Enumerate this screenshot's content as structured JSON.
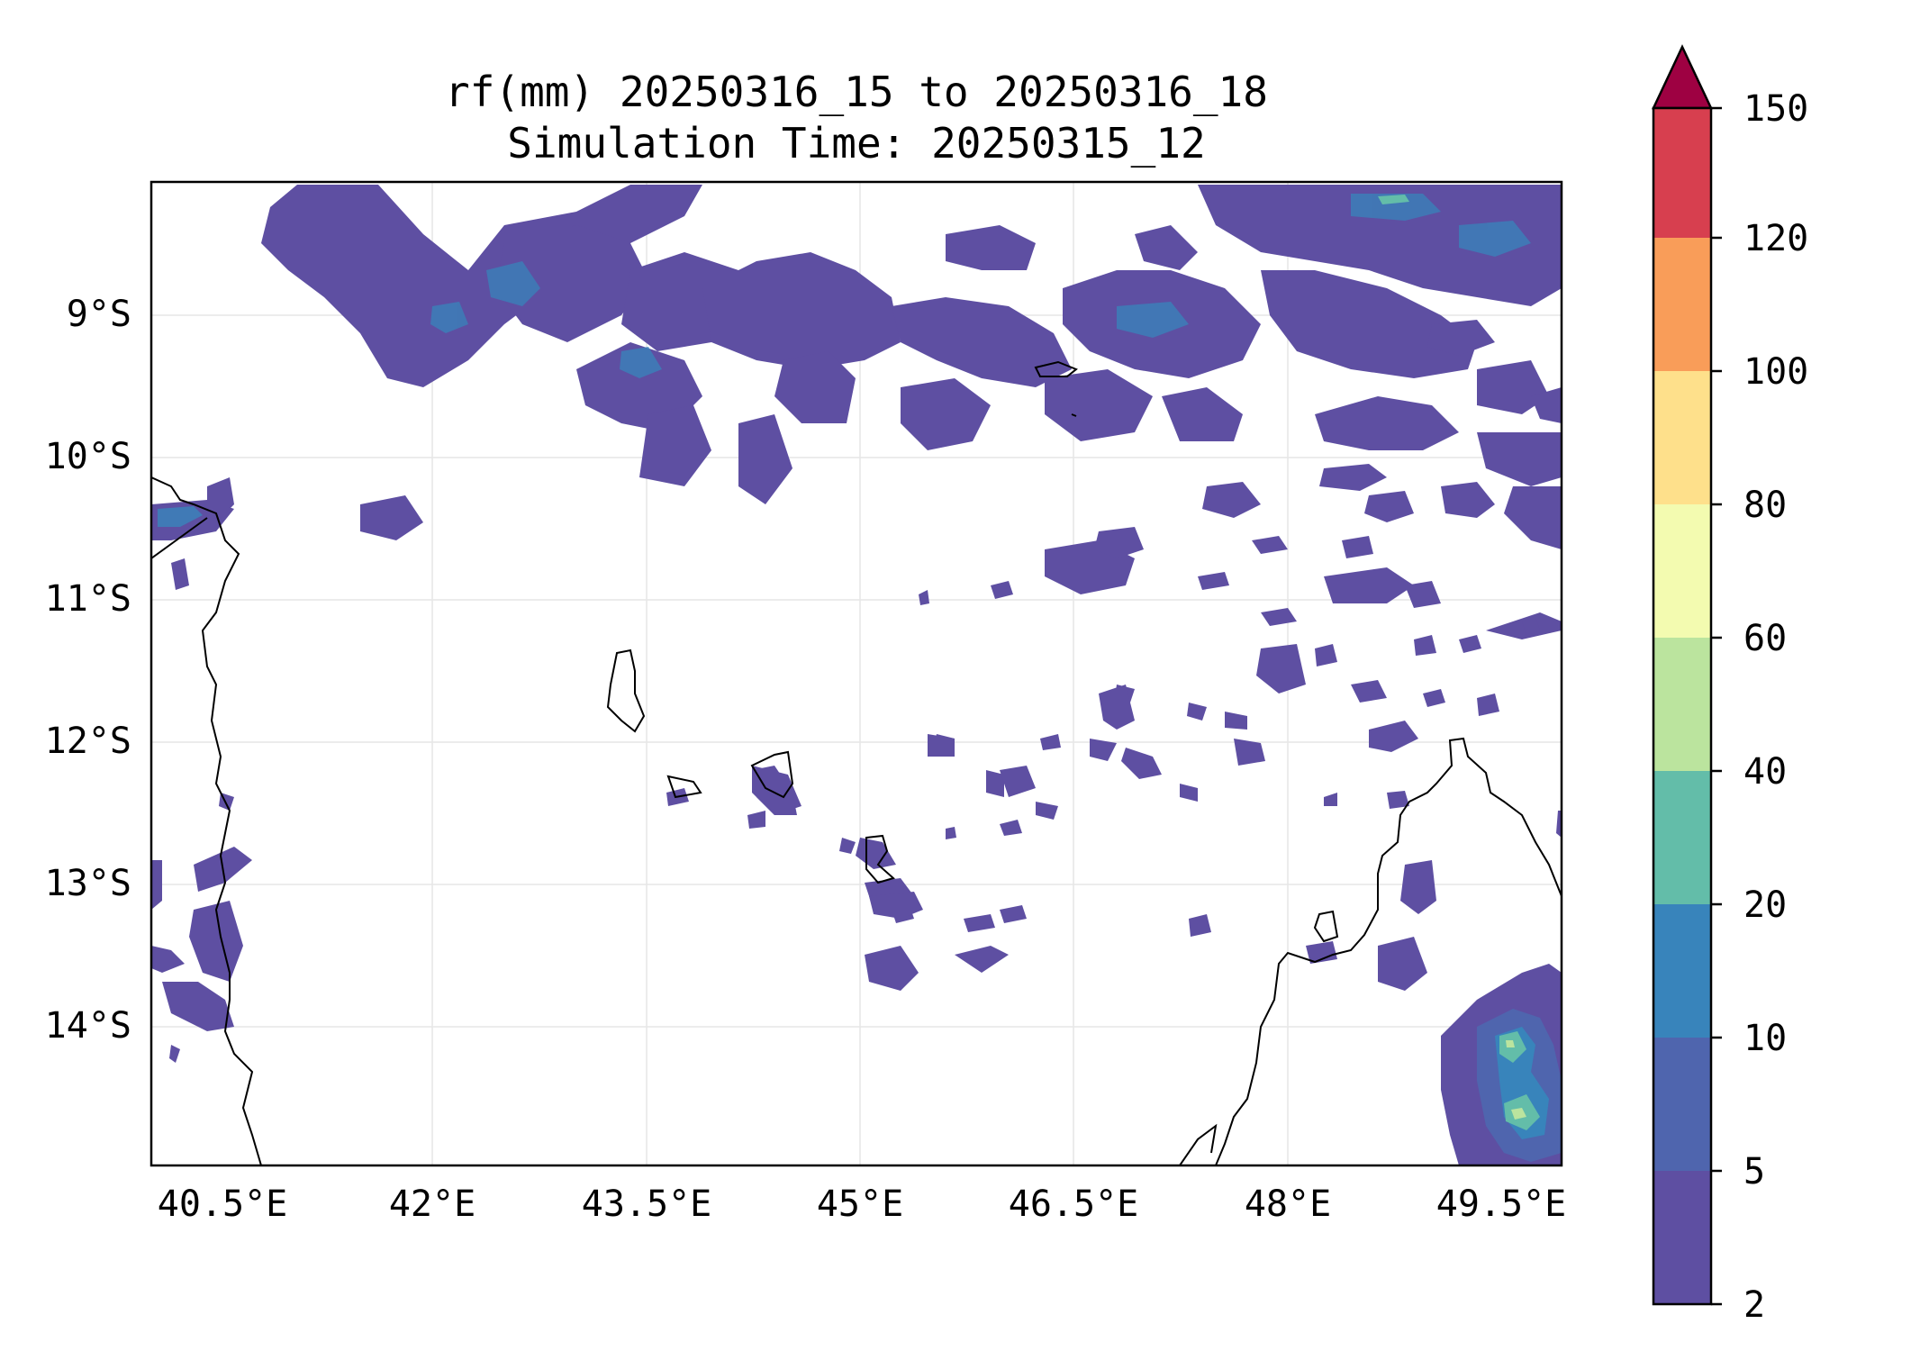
{
  "title": {
    "line1": "rf(mm) 20250316_15 to 20250316_18",
    "line2": "Simulation Time: 20250315_12"
  },
  "map": {
    "lon_range": [
      40.0,
      50.0
    ],
    "lat_range": [
      -15.0,
      -8.06
    ],
    "lon_ticks": [
      {
        "value": 40.5,
        "label": "40.5°E"
      },
      {
        "value": 42.0,
        "label": "42°E"
      },
      {
        "value": 43.5,
        "label": "43.5°E"
      },
      {
        "value": 45.0,
        "label": "45°E"
      },
      {
        "value": 46.5,
        "label": "46.5°E"
      },
      {
        "value": 48.0,
        "label": "48°E"
      },
      {
        "value": 49.5,
        "label": "49.5°E"
      }
    ],
    "lat_ticks": [
      {
        "value": -9,
        "label": "9°S"
      },
      {
        "value": -10,
        "label": "10°S"
      },
      {
        "value": -11,
        "label": "11°S"
      },
      {
        "value": -12,
        "label": "12°S"
      },
      {
        "value": -13,
        "label": "13°S"
      },
      {
        "value": -14,
        "label": "14°S"
      }
    ],
    "gridlines": true,
    "regions_shown": [
      "East African coast (Tanzania / Mozambique)",
      "Comoros islands",
      "Northern Madagascar",
      "Aldabra atoll"
    ]
  },
  "colorbar": {
    "orientation": "vertical",
    "extend": "max",
    "extend_color": "#9e0142",
    "bins": [
      {
        "label": "2",
        "color": "#5e4fa2"
      },
      {
        "label": "5",
        "color": "#4f65ae"
      },
      {
        "label": "10",
        "color": "#3884bb"
      },
      {
        "label": "20",
        "color": "#63bda9"
      },
      {
        "label": "40",
        "color": "#bbe49e"
      },
      {
        "label": "60",
        "color": "#f3fbb0"
      },
      {
        "label": "80",
        "color": "#fee08b"
      },
      {
        "label": "100",
        "color": "#f99d59"
      },
      {
        "label": "120",
        "color": "#d73f4f"
      },
      {
        "label": "150",
        "color": ""
      }
    ]
  },
  "chart_data": {
    "type": "heatmap",
    "title": "rf(mm) 20250316_15 to 20250316_18 / Simulation Time: 20250315_12",
    "xlabel": "",
    "ylabel": "",
    "x_range_deg_E": [
      40.0,
      50.0
    ],
    "y_range_deg_S": [
      8.06,
      15.0
    ],
    "levels": [
      2,
      5,
      10,
      20,
      40,
      60,
      80,
      100,
      120,
      150
    ],
    "features": [
      {
        "region": "northern band 8–10.5°S, 41–50°E",
        "lon": [
          41.0,
          50.0
        ],
        "lat": [
          -10.7,
          -8.06
        ],
        "range": "2-10"
      },
      {
        "region": "NE corner",
        "lon": [
          48.5,
          50.0
        ],
        "lat": [
          -9.0,
          -8.06
        ],
        "range": "5-20"
      },
      {
        "region": "SE cell over N Madagascar",
        "lon": [
          49.2,
          50.0
        ],
        "lat": [
          -15.0,
          -13.7
        ],
        "max": "40-60"
      },
      {
        "region": "Tanzanian coast",
        "lon": [
          40.0,
          40.7
        ],
        "lat": [
          -14.1,
          -10.3
        ],
        "range": "2-10"
      },
      {
        "region": "scattered cells",
        "lon": [
          43.5,
          49.5
        ],
        "lat": [
          -13.0,
          -10.5
        ],
        "range": "2-10"
      }
    ]
  }
}
